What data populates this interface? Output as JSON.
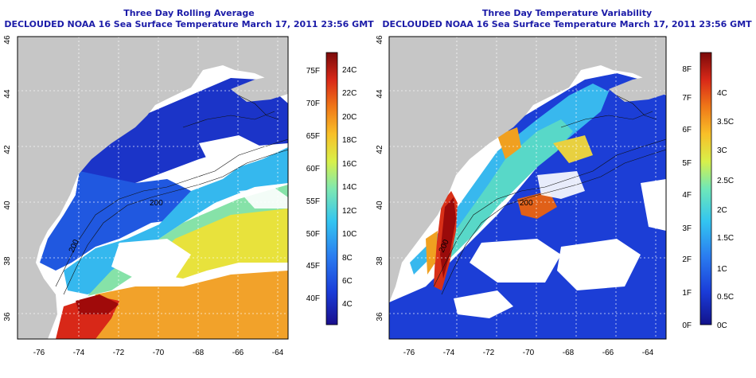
{
  "panels": [
    {
      "title_line1": "Three Day Rolling Average",
      "title_line2": "DECLOUDED NOAA 16 Sea Surface Temperature March 17, 2011 23:56 GMT",
      "x_ticks": [
        "-76",
        "-74",
        "-72",
        "-70",
        "-68",
        "-66",
        "-64"
      ],
      "y_ticks": [
        "36",
        "38",
        "40",
        "42",
        "44",
        "46"
      ],
      "contour_labels": [
        "200",
        "200"
      ],
      "colorbar": {
        "colors": [
          "#1a0f8c",
          "#1a3cd8",
          "#2a7cf0",
          "#33c5f0",
          "#7fe8b0",
          "#d8f04a",
          "#f8c028",
          "#f07818",
          "#d82818",
          "#7a0a0a"
        ],
        "f_labels": [
          "40F",
          "45F",
          "50F",
          "55F",
          "60F",
          "65F",
          "70F",
          "75F"
        ],
        "c_labels": [
          "4C",
          "6C",
          "8C",
          "10C",
          "12C",
          "14C",
          "16C",
          "18C",
          "20C",
          "22C",
          "24C"
        ]
      }
    },
    {
      "title_line1": "Three Day Temperature Variability",
      "title_line2": "DECLOUDED NOAA 16 Sea Surface Temperature March 17, 2011 23:56 GMT",
      "x_ticks": [
        "-76",
        "-74",
        "-72",
        "-70",
        "-68",
        "-66",
        "-64"
      ],
      "y_ticks": [
        "36",
        "38",
        "40",
        "42",
        "44",
        "46"
      ],
      "contour_labels": [
        "200",
        "200"
      ],
      "colorbar": {
        "colors": [
          "#12128a",
          "#1a3cd8",
          "#2a7cf0",
          "#33c5f0",
          "#6fe8b8",
          "#d8f04a",
          "#f8c028",
          "#f07818",
          "#d82818",
          "#7a0a0a"
        ],
        "f_labels": [
          "0F",
          "1F",
          "2F",
          "3F",
          "4F",
          "5F",
          "6F",
          "7F",
          "8F"
        ],
        "c_labels": [
          "0C",
          "0.5C",
          "1C",
          "1.5C",
          "2C",
          "2.5C",
          "3C",
          "3.5C",
          "4C"
        ]
      }
    }
  ]
}
